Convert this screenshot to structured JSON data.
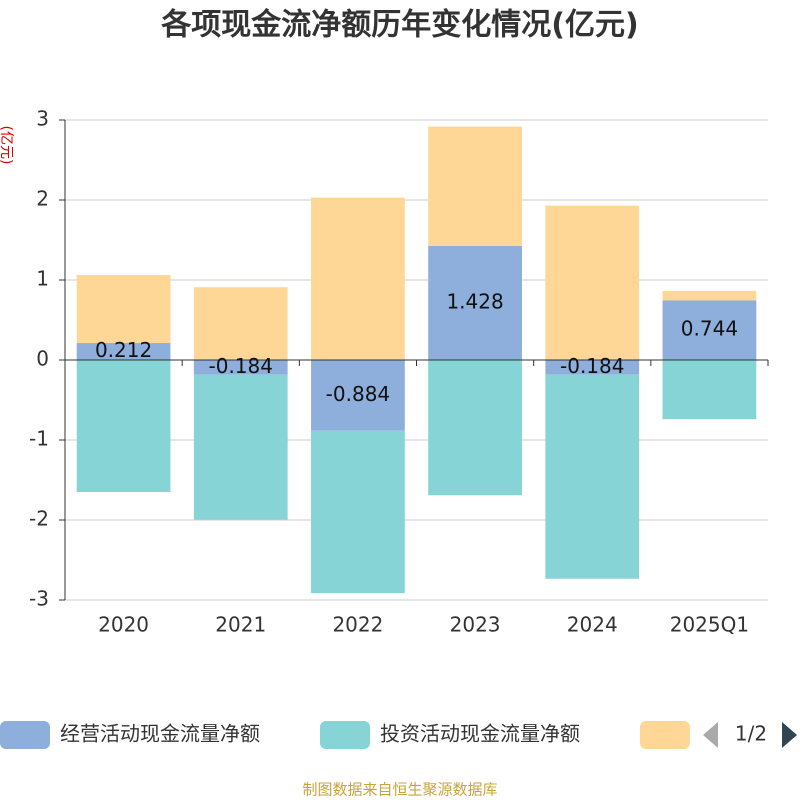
{
  "chart_data": {
    "type": "stacked_bar",
    "title": "各项现金流净额历年变化情况(亿元)",
    "y_label": "(亿元)",
    "categories": [
      "2020",
      "2021",
      "2022",
      "2023",
      "2024",
      "2025Q1"
    ],
    "series": [
      {
        "name": "经营活动现金流量净额",
        "color": "#8eaedb",
        "values": [
          0.212,
          -0.184,
          -0.884,
          1.428,
          -0.184,
          0.744
        ],
        "show_labels": true
      },
      {
        "name": "投资活动现金流量净额",
        "color": "#86d4d6",
        "values": [
          -1.65,
          -1.81,
          -2.03,
          -1.69,
          -2.55,
          -0.74
        ]
      },
      {
        "color": "#fed797",
        "values": [
          0.85,
          0.91,
          2.03,
          1.49,
          1.93,
          0.12
        ]
      }
    ],
    "ylim": [
      -3,
      3
    ],
    "yticks": [
      -3,
      -2,
      -1,
      0,
      1,
      2,
      3
    ],
    "grid": true,
    "legend_page": "1/2",
    "source": "制图数据来自恒生聚源数据库"
  }
}
